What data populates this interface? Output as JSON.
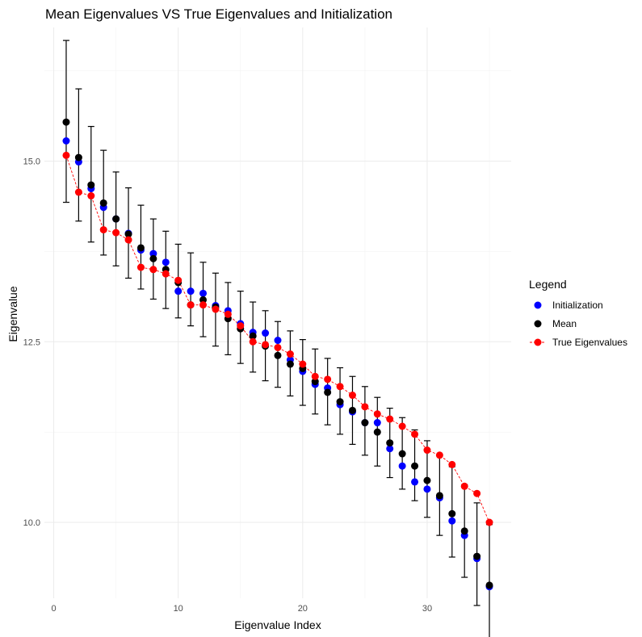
{
  "chart_data": {
    "type": "scatter",
    "title": "Mean Eigenvalues VS True Eigenvalues and Initialization",
    "xlabel": "Eigenvalue Index",
    "ylabel": "Eigenvalue",
    "xlim": [
      -0.75,
      36.75
    ],
    "ylim": [
      8.95,
      16.85
    ],
    "x_ticks": [
      0,
      10,
      20,
      30
    ],
    "y_ticks": [
      10.0,
      12.5,
      15.0
    ],
    "x_tick_labels": [
      "0",
      "10",
      "20",
      "30"
    ],
    "y_tick_labels": [
      "10.0",
      "12.5",
      "15.0"
    ],
    "grid": true,
    "legend": {
      "title": "Legend",
      "position": "right",
      "entries": [
        "Initialization",
        "Mean",
        "True Eigenvalues"
      ]
    },
    "colors": {
      "initialization": "#0000ff",
      "mean": "#000000",
      "true": "#ff0000",
      "errorbar": "#000000"
    },
    "x": [
      1,
      2,
      3,
      4,
      5,
      6,
      7,
      8,
      9,
      10,
      11,
      12,
      13,
      14,
      15,
      16,
      17,
      18,
      19,
      20,
      21,
      22,
      23,
      24,
      25,
      26,
      27,
      28,
      29,
      30,
      31,
      32,
      33,
      34,
      35
    ],
    "series": [
      {
        "name": "Initialization",
        "values": [
          15.28,
          14.99,
          14.62,
          14.36,
          14.2,
          14.0,
          13.77,
          13.72,
          13.6,
          13.2,
          13.2,
          13.17,
          13.0,
          12.93,
          12.75,
          12.63,
          12.62,
          12.52,
          12.25,
          12.09,
          11.91,
          11.86,
          11.63,
          11.53,
          11.38,
          11.38,
          11.02,
          10.78,
          10.56,
          10.46,
          10.34,
          10.02,
          9.82,
          9.5,
          9.11
        ]
      },
      {
        "name": "Mean",
        "values": [
          15.54,
          15.05,
          14.67,
          14.42,
          14.2,
          13.99,
          13.8,
          13.65,
          13.5,
          13.32,
          13.01,
          13.08,
          12.98,
          12.82,
          12.68,
          12.58,
          12.44,
          12.31,
          12.19,
          12.13,
          11.95,
          11.8,
          11.67,
          11.55,
          11.38,
          11.25,
          11.1,
          10.95,
          10.78,
          10.58,
          10.37,
          10.12,
          9.88,
          9.53,
          9.13
        ],
        "error_low": [
          14.43,
          14.17,
          13.88,
          13.7,
          13.55,
          13.38,
          13.23,
          13.09,
          12.96,
          12.83,
          12.72,
          12.57,
          12.44,
          12.32,
          12.2,
          12.08,
          11.96,
          11.87,
          11.75,
          11.62,
          11.5,
          11.35,
          11.22,
          11.08,
          10.93,
          10.78,
          10.62,
          10.46,
          10.3,
          10.07,
          9.82,
          9.52,
          9.24,
          8.85,
          8.33
        ],
        "error_high": [
          16.67,
          16.0,
          15.48,
          15.15,
          14.85,
          14.63,
          14.39,
          14.2,
          14.03,
          13.85,
          13.73,
          13.6,
          13.45,
          13.32,
          13.2,
          13.05,
          12.93,
          12.78,
          12.65,
          12.53,
          12.4,
          12.27,
          12.14,
          12.02,
          11.88,
          11.73,
          11.58,
          11.45,
          11.28,
          11.13,
          10.92,
          10.77,
          10.52,
          10.27,
          9.97
        ]
      },
      {
        "name": "True Eigenvalues",
        "values": [
          15.08,
          14.57,
          14.52,
          14.05,
          14.01,
          13.91,
          13.53,
          13.5,
          13.44,
          13.35,
          13.01,
          13.01,
          12.95,
          12.88,
          12.72,
          12.5,
          12.46,
          12.42,
          12.33,
          12.19,
          12.02,
          11.98,
          11.88,
          11.76,
          11.6,
          11.5,
          11.43,
          11.33,
          11.22,
          11.0,
          10.93,
          10.8,
          10.5,
          10.4,
          10.0
        ]
      }
    ]
  }
}
